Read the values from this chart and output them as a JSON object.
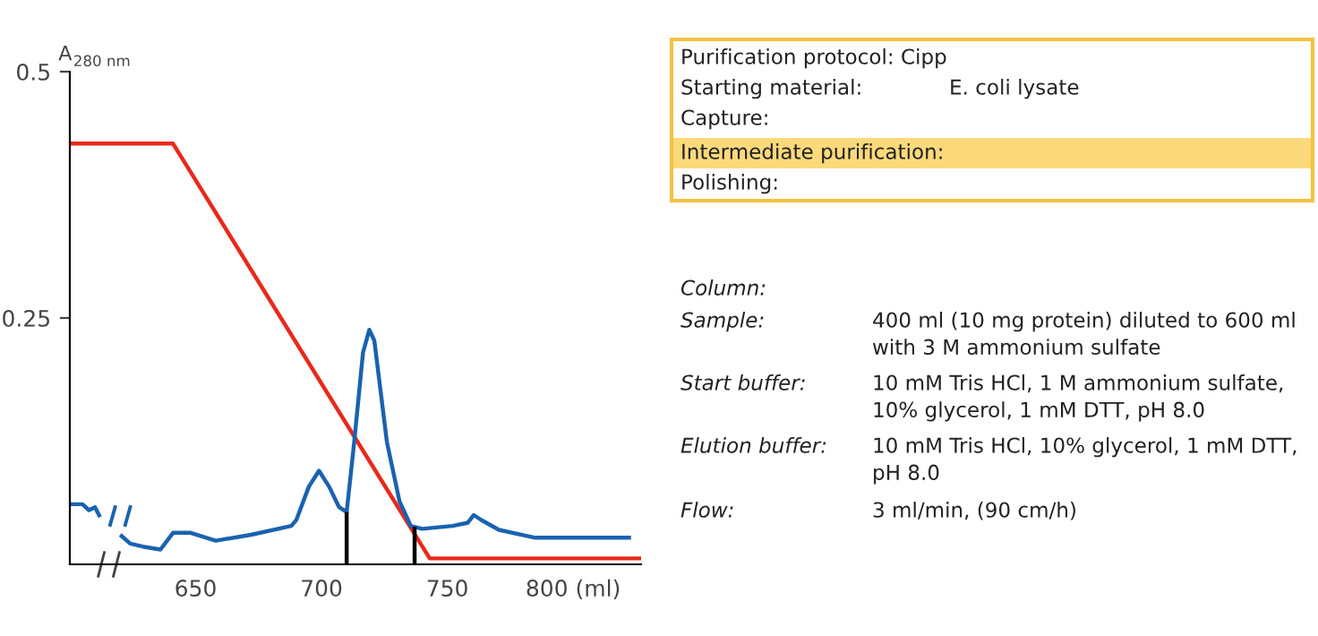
{
  "chart_data": {
    "type": "line",
    "ylabel": "A$_{280 nm}$",
    "ylim": [
      0,
      0.5
    ],
    "yticks": [
      0.25,
      0.5
    ],
    "xlim": [
      600,
      827
    ],
    "xticks": [
      650,
      700,
      750,
      {
        "value": 800,
        "label": "800 (ml)"
      }
    ],
    "grid": false,
    "legend": false,
    "marker": "none",
    "line_style": "solid",
    "series": [
      {
        "color": "#e8291c",
        "x": [
          600,
          641,
          743,
          827
        ],
        "values": [
          0.427,
          0.427,
          0.006,
          0.006
        ]
      },
      {
        "color": "#1a62b0",
        "x": [
          600,
          605,
          607.6,
          610,
          612,
          616,
          620,
          624,
          629,
          636,
          641,
          648,
          658,
          672,
          688,
          690,
          695,
          699,
          703,
          707,
          710,
          713,
          716.5,
          719,
          721,
          726,
          731,
          735.5,
          740,
          752,
          758,
          760.5,
          763.5,
          770.5,
          785,
          800,
          823
        ],
        "values": [
          0.061,
          0.061,
          0.055,
          0.058,
          0.048,
          null,
          0.03,
          0.021,
          0.018,
          0.015,
          0.032,
          0.032,
          0.024,
          0.03,
          0.039,
          0.045,
          0.079,
          0.095,
          0.079,
          0.058,
          0.053,
          0.124,
          0.215,
          0.238,
          0.227,
          0.124,
          0.064,
          0.039,
          0.036,
          0.039,
          0.042,
          0.05,
          0.045,
          0.035,
          0.027,
          0.027,
          0.027
        ]
      },
      {
        "color": "#000000",
        "x": [
          710,
          710
        ],
        "values": [
          0,
          0.053
        ]
      },
      {
        "color": "#000000",
        "x": [
          737,
          737
        ],
        "values": [
          0,
          0.038
        ]
      }
    ],
    "annotations": [
      "Purification protocol: Cipp",
      "Starting material:",
      "E. coli lysate",
      "Capture:",
      "Intermediate purification:",
      "Polishing:",
      "Column:",
      "Sample:",
      "400 ml (10 mg protein) diluted to 600 ml\nwith 3 M ammonium sulfate",
      "Start buffer:",
      "10 mM Tris HCl, 1 M ammonium sulfate,\n10% glycerol, 1 mM DTT, pH 8.0",
      "Elution buffer:",
      "10 mM Tris HCl, 10% glycerol, 1 mM DTT,\npH 8.0",
      "Flow:",
      "3 ml/min, (90 cm/h)"
    ]
  }
}
